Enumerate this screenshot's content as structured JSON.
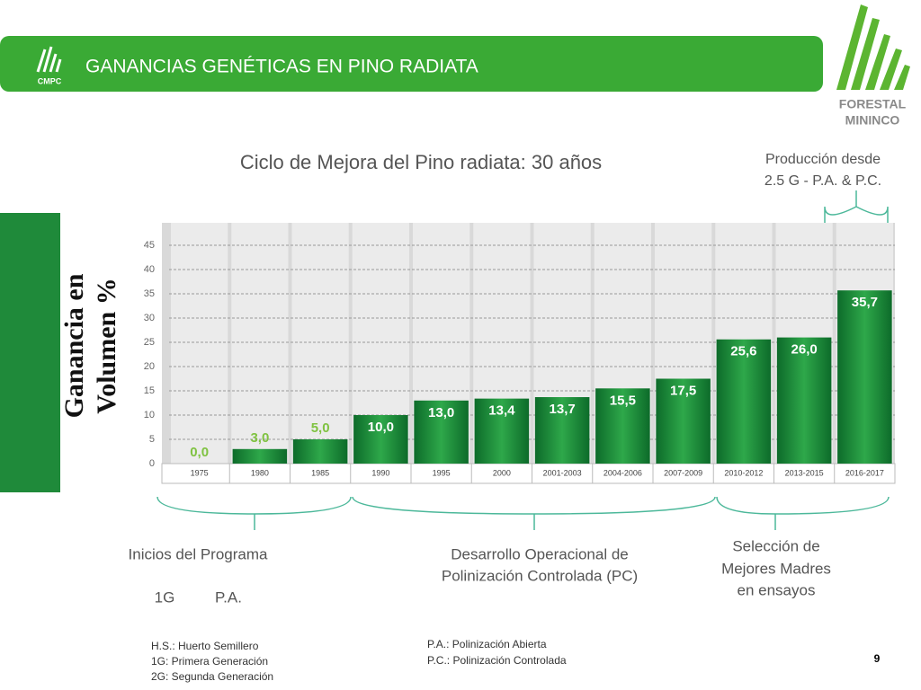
{
  "header": {
    "title": "GANANCIAS GENÉTICAS EN PINO RADIATA",
    "logo_left": "CMPC",
    "logo_right": [
      "FORESTAL",
      "MININCO"
    ]
  },
  "chart_data": {
    "type": "bar",
    "title": "Ciclo de Mejora  del Pino radiata: 30 años",
    "ylabel": [
      "Ganancia en",
      "Volumen %"
    ],
    "categories": [
      "1975",
      "1980",
      "1985",
      "1990",
      "1995",
      "2000",
      "2001-2003",
      "2004-2006",
      "2007-2009",
      "2010-2012",
      "2013-2015",
      "2016-2017"
    ],
    "values": [
      0,
      3,
      5,
      10,
      13,
      13.4,
      13.7,
      15.5,
      17.5,
      25.6,
      26,
      35.7
    ],
    "value_labels": [
      "0,0",
      "3,0",
      "5,0",
      "10,0",
      "13,0",
      "13,4",
      "13,7",
      "15,5",
      "17,5",
      "25,6",
      "26,0",
      "35,7"
    ],
    "color": "#1e8a3a",
    "ylim": [
      0,
      45
    ],
    "yticks": [
      0,
      5,
      10,
      15,
      20,
      25,
      30,
      35,
      40,
      45
    ],
    "grid": true
  },
  "annotations": {
    "production": [
      "Producción desde",
      "2.5 G -   P.A. & P.C."
    ],
    "inicios": [
      "Inicios del Programa",
      "1G",
      "P.A."
    ],
    "desarrollo": [
      "Desarrollo Operacional de",
      "Polinización Controlada (PC)"
    ],
    "seleccion": [
      "Selección de",
      "Mejores Madres",
      "en ensayos"
    ]
  },
  "footnotes": {
    "left": [
      "H.S.: Huerto Semillero",
      "1G: Primera Generación",
      "2G: Segunda Generación"
    ],
    "right": [
      "P.A.: Polinización Abierta",
      "P.C.: Polinización Controlada"
    ]
  },
  "page_number": "9"
}
